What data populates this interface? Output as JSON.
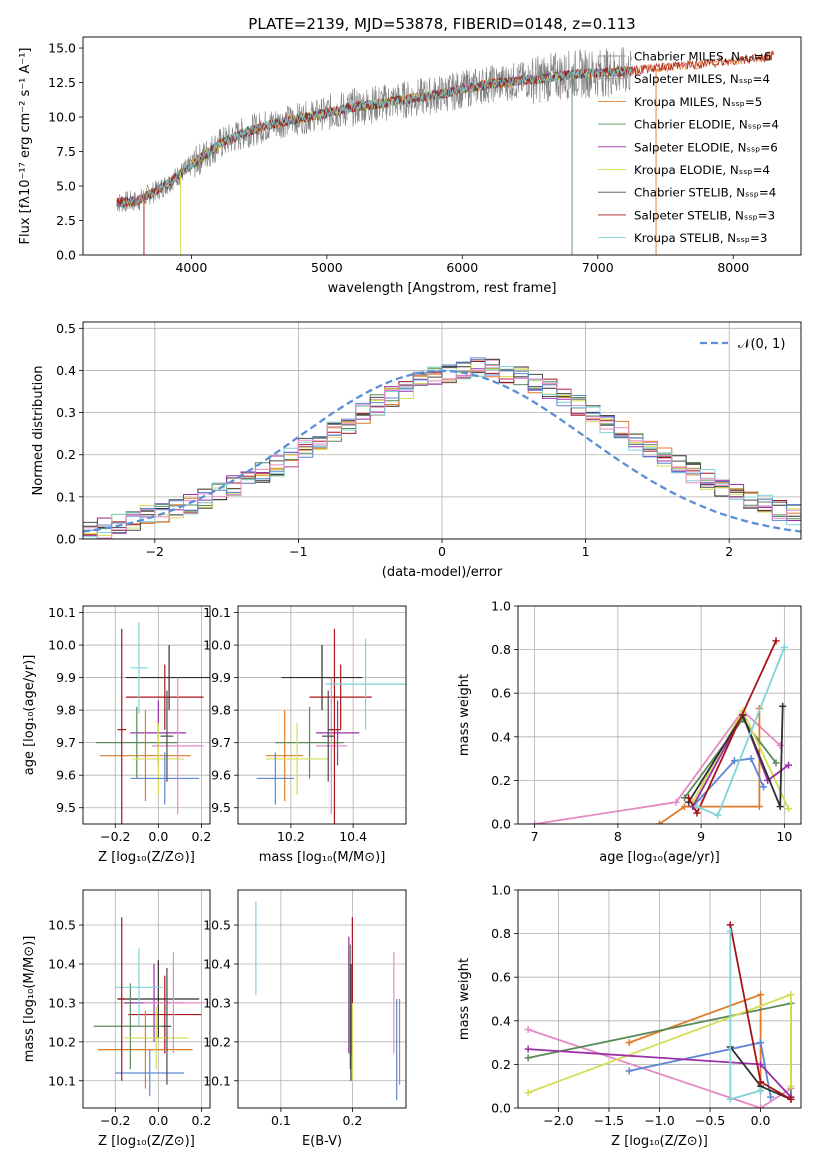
{
  "colors": [
    "#2f2f2f",
    "#999999",
    "#e07b2a",
    "#5a8a5a",
    "#9b30a8",
    "#d4de52",
    "#4a4a4a",
    "#a81419",
    "#7fd4d8",
    "#5d86d6",
    "#e58ac4"
  ],
  "chart_data": [
    {
      "id": "spectrum",
      "type": "line",
      "title": "PLATE=2139, MJD=53878, FIBERID=0148, z=0.113",
      "xlabel": "wavelength [Angstrom, rest frame]",
      "ylabel": "Flux [fλ10⁻¹⁷ erg cm⁻² s⁻¹ A⁻¹]",
      "xlim": [
        3200,
        8500
      ],
      "ylim": [
        0,
        15.8
      ],
      "xticks": [
        "4000",
        "5000",
        "6000",
        "7000",
        "8000"
      ],
      "yticks": [
        "0.0",
        "2.5",
        "5.0",
        "7.5",
        "10.0",
        "12.5",
        "15.0"
      ],
      "continuum": {
        "x": [
          3450,
          3600,
          3800,
          4000,
          4200,
          4400,
          4600,
          4800,
          5000,
          5200,
          5400,
          5600,
          5800,
          6000,
          6200,
          6400,
          6600,
          6800,
          7000,
          7200,
          7400,
          7600,
          7800,
          8000,
          8200,
          8300
        ],
        "y": [
          3.8,
          3.9,
          5.0,
          6.5,
          8.0,
          8.9,
          9.5,
          9.9,
          10.3,
          10.7,
          11.0,
          11.3,
          11.6,
          12.0,
          12.4,
          12.6,
          12.8,
          13.1,
          13.2,
          13.3,
          13.5,
          13.7,
          13.9,
          14.1,
          14.3,
          14.5
        ]
      },
      "legend": [
        {
          "name": "Chabrier MILES, Nₛₛₚ=6"
        },
        {
          "name": "Salpeter MILES, Nₛₛₚ=4"
        },
        {
          "name": "Kroupa MILES, Nₛₛₚ=5"
        },
        {
          "name": "Chabrier ELODIE, Nₛₛₚ=4"
        },
        {
          "name": "Salpeter ELODIE, Nₛₛₚ=6"
        },
        {
          "name": "Kroupa ELODIE, Nₛₛₚ=4"
        },
        {
          "name": "Chabrier STELIB, Nₛₛₚ=4"
        },
        {
          "name": "Salpeter STELIB, Nₛₛₚ=3"
        },
        {
          "name": "Kroupa STELIB, Nₛₛₚ=3"
        }
      ]
    },
    {
      "id": "residuals",
      "type": "histogram",
      "xlabel": "(data-model)/error",
      "ylabel": "Normed distribution",
      "xlim": [
        -2.5,
        2.5
      ],
      "ylim": [
        0,
        0.515
      ],
      "xticks": [
        "−2",
        "−1",
        "0",
        "1",
        "2"
      ],
      "yticks": [
        "0.0",
        "0.1",
        "0.2",
        "0.3",
        "0.4",
        "0.5"
      ],
      "legend": "𝒩(0, 1)",
      "bin_width": 0.1,
      "values": [
        0.02,
        0.025,
        0.035,
        0.045,
        0.055,
        0.06,
        0.07,
        0.082,
        0.095,
        0.11,
        0.125,
        0.14,
        0.158,
        0.175,
        0.195,
        0.215,
        0.235,
        0.255,
        0.275,
        0.298,
        0.318,
        0.338,
        0.355,
        0.372,
        0.386,
        0.396,
        0.403,
        0.405,
        0.403,
        0.395,
        0.385,
        0.372,
        0.355,
        0.336,
        0.316,
        0.295,
        0.275,
        0.255,
        0.235,
        0.215,
        0.195,
        0.175,
        0.158,
        0.14,
        0.123,
        0.108,
        0.093,
        0.08,
        0.068,
        0.058
      ]
    },
    {
      "id": "age-vs-Z",
      "type": "errorbar",
      "xlabel": "Z [log₁₀(Z/Z⊙)]",
      "ylabel": "age  [log₁₀(age/yr)]",
      "xlim": [
        -0.35,
        0.24
      ],
      "ylim": [
        9.45,
        10.12
      ],
      "xticks": [
        "−0.2",
        "0.0",
        "0.2"
      ],
      "yticks": [
        "9.5",
        "9.6",
        "9.7",
        "9.8",
        "9.9",
        "10.0",
        "10.1"
      ],
      "points": [
        {
          "x": 0.05,
          "y": 9.9,
          "xerr": 0.2,
          "yerr": 0.1,
          "c": 0
        },
        {
          "x": 0.03,
          "y": 9.84,
          "xerr": 0.18,
          "yerr": 0.1,
          "c": 7
        },
        {
          "x": 0.0,
          "y": 9.73,
          "xerr": 0.13,
          "yerr": 0.1,
          "c": 4
        },
        {
          "x": -0.06,
          "y": 9.66,
          "xerr": 0.21,
          "yerr": 0.14,
          "c": 2
        },
        {
          "x": -0.1,
          "y": 9.7,
          "xerr": 0.19,
          "yerr": 0.11,
          "c": 3
        },
        {
          "x": 0.0,
          "y": 9.65,
          "xerr": 0.12,
          "yerr": 0.11,
          "c": 5
        },
        {
          "x": 0.03,
          "y": 9.59,
          "xerr": 0.16,
          "yerr": 0.08,
          "c": 9
        },
        {
          "x": 0.09,
          "y": 9.69,
          "xerr": 0.12,
          "yerr": 0.21,
          "c": 10
        },
        {
          "x": -0.17,
          "y": 9.74,
          "xerr": 0.02,
          "yerr": 0.31,
          "c": 7
        },
        {
          "x": -0.09,
          "y": 9.93,
          "xerr": 0.04,
          "yerr": 0.14,
          "c": 8
        },
        {
          "x": 0.04,
          "y": 9.72,
          "xerr": 0.03,
          "yerr": 0.14,
          "c": 6
        }
      ]
    },
    {
      "id": "age-vs-mass",
      "type": "errorbar",
      "xlabel": "mass [log₁₀(M/M⊙)]",
      "ylabel": "",
      "xlim": [
        10.03,
        10.57
      ],
      "ylim": [
        9.45,
        10.12
      ],
      "xticks": [
        "10.2",
        "10.4"
      ],
      "yticks": [
        "9.5",
        "9.6",
        "9.7",
        "9.8",
        "9.9",
        "10.0",
        "10.1"
      ],
      "points": [
        {
          "x": 10.3,
          "y": 9.9,
          "xerr": 0.13,
          "yerr": 0.1,
          "c": 0
        },
        {
          "x": 10.36,
          "y": 9.84,
          "xerr": 0.1,
          "yerr": 0.1,
          "c": 7
        },
        {
          "x": 10.35,
          "y": 9.73,
          "xerr": 0.07,
          "yerr": 0.1,
          "c": 4
        },
        {
          "x": 10.18,
          "y": 9.66,
          "xerr": 0.06,
          "yerr": 0.14,
          "c": 2
        },
        {
          "x": 10.26,
          "y": 9.7,
          "xerr": 0.11,
          "yerr": 0.11,
          "c": 3
        },
        {
          "x": 10.22,
          "y": 9.65,
          "xerr": 0.1,
          "yerr": 0.11,
          "c": 5
        },
        {
          "x": 10.15,
          "y": 9.59,
          "xerr": 0.06,
          "yerr": 0.08,
          "c": 9
        },
        {
          "x": 10.33,
          "y": 9.69,
          "xerr": 0.05,
          "yerr": 0.21,
          "c": 10
        },
        {
          "x": 10.34,
          "y": 9.74,
          "xerr": 0.02,
          "yerr": 0.31,
          "c": 7
        },
        {
          "x": 10.44,
          "y": 9.88,
          "xerr": 0.13,
          "yerr": 0.14,
          "c": 8
        },
        {
          "x": 10.32,
          "y": 9.72,
          "xerr": 0.02,
          "yerr": 0.14,
          "c": 6
        }
      ]
    },
    {
      "id": "massweight-vs-age",
      "type": "line",
      "xlabel": "age  [log₁₀(age/yr)]",
      "ylabel": "mass weight",
      "xlim": [
        6.8,
        10.2
      ],
      "ylim": [
        0,
        1.0
      ],
      "xticks": [
        "7",
        "8",
        "9",
        "10"
      ],
      "yticks": [
        "0.0",
        "0.2",
        "0.4",
        "0.6",
        "0.8",
        "1.0"
      ],
      "series": [
        {
          "c": 10,
          "x": [
            7.0,
            8.7,
            9.5,
            9.95
          ],
          "y": [
            0.0,
            0.1,
            0.52,
            0.36
          ]
        },
        {
          "c": 2,
          "x": [
            8.5,
            8.8,
            9.7,
            9.7
          ],
          "y": [
            0.0,
            0.08,
            0.08,
            0.53
          ]
        },
        {
          "c": 9,
          "x": [
            8.9,
            9.4,
            9.6,
            9.75
          ],
          "y": [
            0.08,
            0.29,
            0.3,
            0.17
          ]
        },
        {
          "c": 3,
          "x": [
            8.8,
            9.5,
            9.9
          ],
          "y": [
            0.12,
            0.48,
            0.28
          ]
        },
        {
          "c": 5,
          "x": [
            8.9,
            9.5,
            10.05
          ],
          "y": [
            0.1,
            0.52,
            0.07
          ]
        },
        {
          "c": 4,
          "x": [
            8.9,
            9.5,
            9.8,
            10.05
          ],
          "y": [
            0.08,
            0.5,
            0.2,
            0.27
          ]
        },
        {
          "c": 0,
          "x": [
            8.85,
            9.5,
            9.95,
            9.98
          ],
          "y": [
            0.1,
            0.5,
            0.08,
            0.54
          ]
        },
        {
          "c": 7,
          "x": [
            8.85,
            8.95,
            9.9
          ],
          "y": [
            0.12,
            0.05,
            0.84
          ]
        },
        {
          "c": 8,
          "x": [
            8.95,
            9.2,
            10.0
          ],
          "y": [
            0.08,
            0.04,
            0.81
          ]
        }
      ]
    },
    {
      "id": "mass-vs-Z",
      "type": "errorbar",
      "xlabel": "Z [log₁₀(Z/Z⊙)]",
      "ylabel": "mass [log₁₀(M/M⊙)]",
      "xlim": [
        -0.35,
        0.24
      ],
      "ylim": [
        10.03,
        10.59
      ],
      "xticks": [
        "−0.2",
        "0.0",
        "0.2"
      ],
      "yticks": [
        "10.1",
        "10.2",
        "10.3",
        "10.4",
        "10.5"
      ],
      "points": [
        {
          "x": 0.0,
          "y": 10.31,
          "xerr": 0.19,
          "yerr": 0.1,
          "c": 0
        },
        {
          "x": 0.03,
          "y": 10.27,
          "xerr": 0.17,
          "yerr": 0.1,
          "c": 7
        },
        {
          "x": -0.02,
          "y": 10.3,
          "xerr": 0.14,
          "yerr": 0.1,
          "c": 4
        },
        {
          "x": -0.06,
          "y": 10.18,
          "xerr": 0.22,
          "yerr": 0.1,
          "c": 2
        },
        {
          "x": -0.13,
          "y": 10.24,
          "xerr": 0.17,
          "yerr": 0.11,
          "c": 3
        },
        {
          "x": -0.01,
          "y": 10.21,
          "xerr": 0.15,
          "yerr": 0.08,
          "c": 5
        },
        {
          "x": -0.04,
          "y": 10.12,
          "xerr": 0.16,
          "yerr": 0.06,
          "c": 9
        },
        {
          "x": 0.07,
          "y": 10.3,
          "xerr": 0.14,
          "yerr": 0.13,
          "c": 10
        },
        {
          "x": -0.09,
          "y": 10.34,
          "xerr": 0.11,
          "yerr": 0.1,
          "c": 8
        },
        {
          "x": -0.17,
          "y": 10.31,
          "xerr": 0.02,
          "yerr": 0.21,
          "c": 7
        },
        {
          "x": 0.04,
          "y": 10.24,
          "xerr": 0.02,
          "yerr": 0.15,
          "c": 6
        }
      ]
    },
    {
      "id": "mass-vs-ebv",
      "type": "errorbar",
      "xlabel": "E(B-V)",
      "ylabel": "",
      "xlim": [
        0.04,
        0.275
      ],
      "ylim": [
        10.03,
        10.59
      ],
      "xticks": [
        "0.1",
        "0.2"
      ],
      "yticks": [
        "10.1",
        "10.2",
        "10.3",
        "10.4",
        "10.5"
      ],
      "points": [
        {
          "x": 0.065,
          "y": 10.44,
          "xerr": 0,
          "yerr": 0.12,
          "c": 8
        },
        {
          "x": 0.195,
          "y": 10.32,
          "xerr": 0,
          "yerr": 0.15,
          "c": 4
        },
        {
          "x": 0.197,
          "y": 10.29,
          "xerr": 0,
          "yerr": 0.16,
          "c": 3
        },
        {
          "x": 0.198,
          "y": 10.25,
          "xerr": 0,
          "yerr": 0.15,
          "c": 0
        },
        {
          "x": 0.2,
          "y": 10.34,
          "xerr": 0,
          "yerr": 0.18,
          "c": 7
        },
        {
          "x": 0.2,
          "y": 10.2,
          "xerr": 0,
          "yerr": 0.1,
          "c": 5
        },
        {
          "x": 0.258,
          "y": 10.3,
          "xerr": 0,
          "yerr": 0.13,
          "c": 10
        },
        {
          "x": 0.262,
          "y": 10.18,
          "xerr": 0,
          "yerr": 0.13,
          "c": 9
        },
        {
          "x": 0.266,
          "y": 10.2,
          "xerr": 0,
          "yerr": 0.11,
          "c": 2
        }
      ]
    },
    {
      "id": "massweight-vs-Z",
      "type": "line",
      "xlabel": "Z [log₁₀(Z/Z⊙)]",
      "ylabel": "mass weight",
      "xlim": [
        -2.4,
        0.4
      ],
      "ylim": [
        0,
        1.0
      ],
      "xticks": [
        "−2.0",
        "−1.5",
        "−1.0",
        "−0.5",
        "0.0"
      ],
      "yticks": [
        "0.0",
        "0.2",
        "0.4",
        "0.6",
        "0.8",
        "1.0"
      ],
      "series": [
        {
          "c": 10,
          "x": [
            -2.3,
            0.0,
            0.3
          ],
          "y": [
            0.36,
            0.0,
            0.09
          ]
        },
        {
          "c": 2,
          "x": [
            -1.3,
            0.0,
            0.0
          ],
          "y": [
            0.3,
            0.52,
            0.08
          ]
        },
        {
          "c": 9,
          "x": [
            -1.3,
            0.0,
            0.1
          ],
          "y": [
            0.17,
            0.3,
            0.05
          ]
        },
        {
          "c": 3,
          "x": [
            -2.3,
            0.3,
            0.3
          ],
          "y": [
            0.23,
            0.48,
            0.05
          ]
        },
        {
          "c": 5,
          "x": [
            -2.3,
            0.3,
            0.3
          ],
          "y": [
            0.07,
            0.52,
            0.1
          ]
        },
        {
          "c": 4,
          "x": [
            -2.3,
            0.0,
            0.3
          ],
          "y": [
            0.27,
            0.2,
            0.05
          ]
        },
        {
          "c": 0,
          "x": [
            -0.3,
            0.0,
            0.3
          ],
          "y": [
            0.28,
            0.1,
            0.04
          ]
        },
        {
          "c": 7,
          "x": [
            -0.3,
            0.0,
            0.3
          ],
          "y": [
            0.84,
            0.12,
            0.04
          ]
        },
        {
          "c": 8,
          "x": [
            -0.3,
            -0.3,
            0.0
          ],
          "y": [
            0.81,
            0.04,
            0.08
          ]
        }
      ]
    }
  ]
}
